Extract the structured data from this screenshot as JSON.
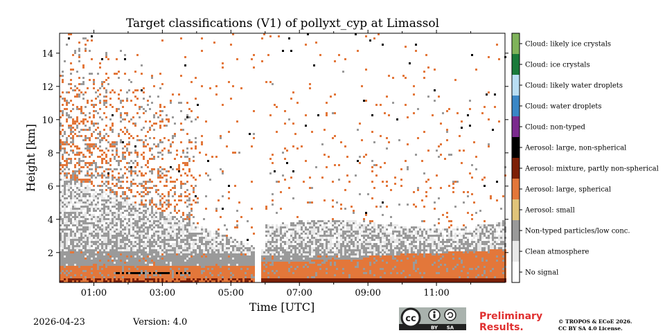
{
  "chart_data": {
    "type": "heatmap",
    "title": "Target classifications (V1) of pollyxt_cyp at Limassol",
    "xlabel": "Time [UTC]",
    "ylabel": "Height [km]",
    "x_range_hours": [
      0.0,
      13.0
    ],
    "ylim": [
      0.2,
      15.2
    ],
    "xticks": [
      "01:00",
      "03:00",
      "05:00",
      "07:00",
      "09:00",
      "11:00"
    ],
    "xtick_hours": [
      1,
      3,
      5,
      7,
      9,
      11
    ],
    "yticks": [
      2,
      4,
      6,
      8,
      10,
      12,
      14
    ],
    "data_gap_hours": [
      5.65,
      5.85
    ],
    "classes": [
      {
        "label": "Cloud: likely ice crystals",
        "color": "#7fb35a"
      },
      {
        "label": "Cloud: ice crystals",
        "color": "#1a7a3a"
      },
      {
        "label": "Cloud: likely water droplets",
        "color": "#b9def3"
      },
      {
        "label": "Cloud: water droplets",
        "color": "#3a87c6"
      },
      {
        "label": "Cloud: non-typed",
        "color": "#7b2a8e"
      },
      {
        "label": "Aerosol: large, non-spherical",
        "color": "#000000"
      },
      {
        "label": "Aerosol: mixture, partly non-spherical",
        "color": "#7d2006"
      },
      {
        "label": "Aerosol: large, spherical",
        "color": "#e3773a"
      },
      {
        "label": "Aerosol: small",
        "color": "#e0c47a"
      },
      {
        "label": "Non-typed particles/low conc.",
        "color": "#9a9a9a"
      },
      {
        "label": "Clean atmosphere",
        "color": "#e8e8e8"
      },
      {
        "label": "No signal",
        "color": "#ffffff"
      }
    ]
  },
  "footer": {
    "date": "2026-04-23",
    "version": "Version: 4.0",
    "preliminary_line1": "Preliminary",
    "preliminary_line2": "Results.",
    "copyright_line1": "© TROPOS & ECoE 2026.",
    "copyright_line2": "CC BY SA 4.0 License.",
    "license_badge_text": [
      "cc",
      "BY",
      "SA"
    ]
  }
}
